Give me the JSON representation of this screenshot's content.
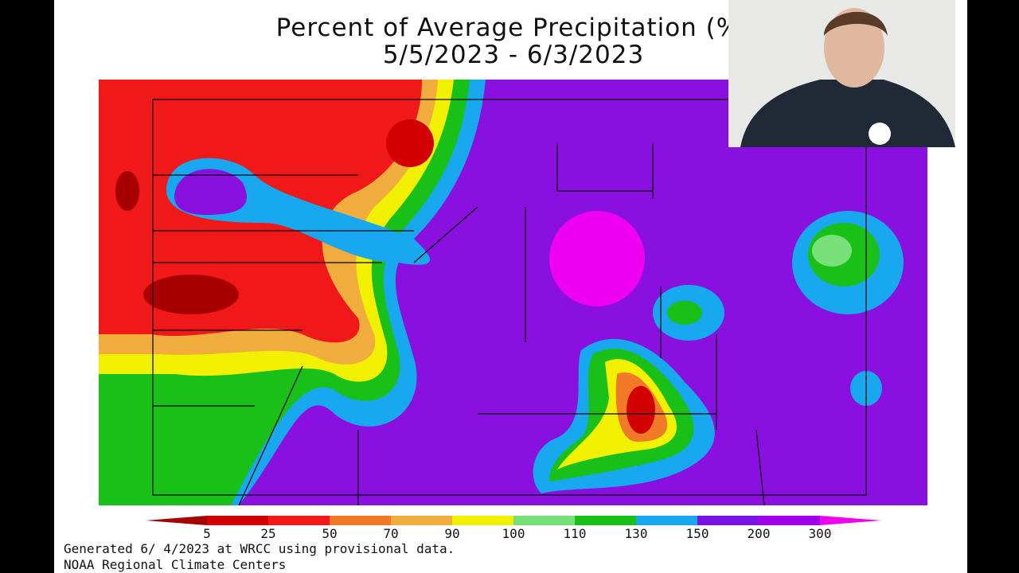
{
  "title": "Percent of Average Precipitation (%)",
  "subtitle": "5/5/2023 - 6/3/2023",
  "legend": {
    "labels": [
      "5",
      "25",
      "50",
      "70",
      "90",
      "100",
      "110",
      "130",
      "150",
      "200",
      "300"
    ],
    "colors": [
      "#a80000",
      "#d20000",
      "#f01818",
      "#f07a28",
      "#f0ac3c",
      "#f0f000",
      "#78e078",
      "#18c018",
      "#18a8f0",
      "#7814e0",
      "#a000e8",
      "#f000f0"
    ]
  },
  "footer": [
    "Generated 6/ 4/2023 at WRCC using provisional data.",
    "NOAA Regional Climate Centers"
  ]
}
